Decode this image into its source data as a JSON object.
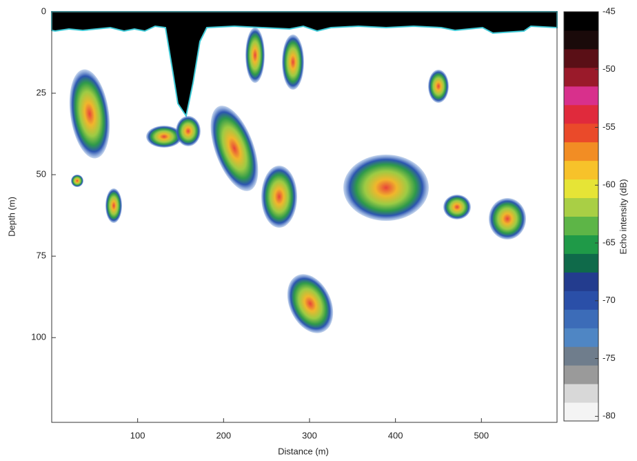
{
  "chart_data": {
    "type": "heatmap",
    "xlabel": "Distance (m)",
    "ylabel": "Depth (m)",
    "xlim": [
      0,
      588
    ],
    "xticks": [
      100,
      200,
      300,
      400,
      500
    ],
    "ylim": [
      0,
      126
    ],
    "yticks": [
      0,
      25,
      50,
      75,
      100
    ],
    "y_reversed": true,
    "colorbar": {
      "label": "Echo intensity (dB)",
      "lim": [
        -80.4,
        -45
      ],
      "ticks": [
        -45,
        -50,
        -55,
        -60,
        -65,
        -70,
        -75,
        -80
      ],
      "colors": [
        "#f4f4f4",
        "#d8d8d8",
        "#9a9a9a",
        "#6f7d8c",
        "#4f86c4",
        "#3c6cb8",
        "#2a4fa8",
        "#233c8e",
        "#0f6a4a",
        "#1f9a48",
        "#5db547",
        "#a9cf45",
        "#e6e436",
        "#f7c22a",
        "#f28d24",
        "#ea4a2a",
        "#e02a3c",
        "#d8308c",
        "#9a1a2a",
        "#5a0f16",
        "#1a0a0a",
        "#000000"
      ]
    }
  }
}
